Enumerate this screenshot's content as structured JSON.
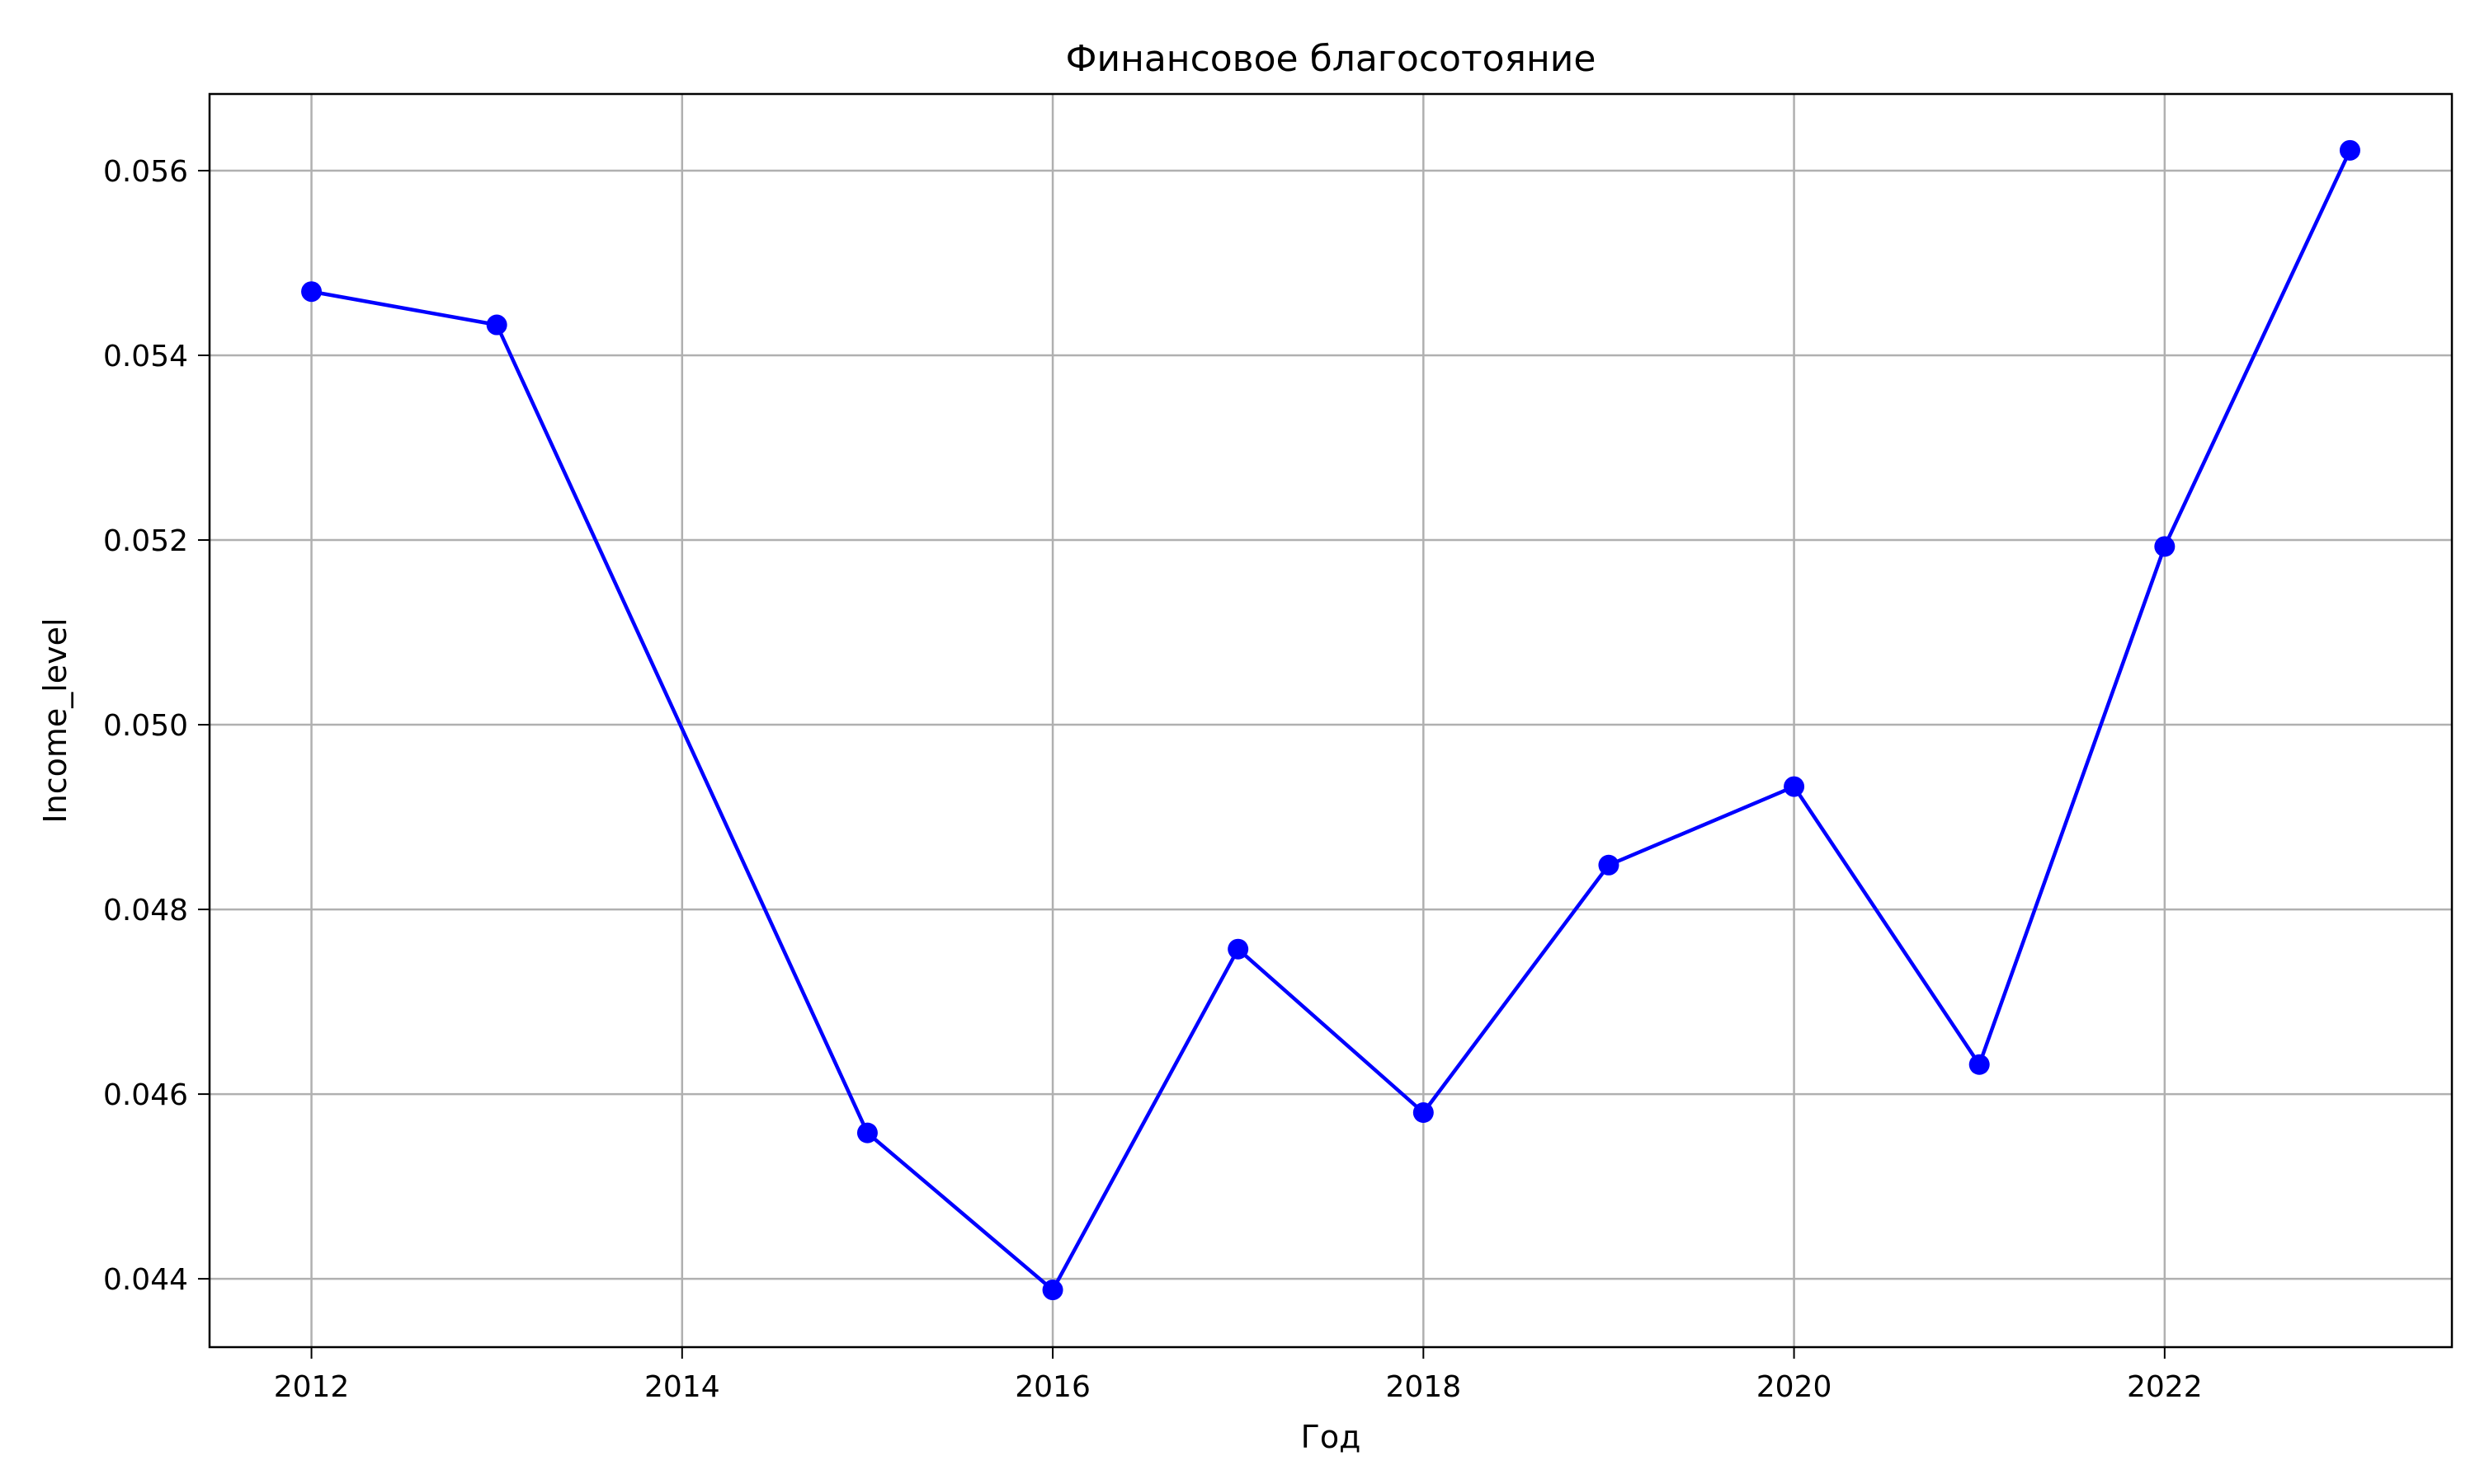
{
  "chart_data": {
    "type": "line",
    "title": "Финансовое благосотояние",
    "xlabel": "Год",
    "ylabel": "Income_level",
    "x": [
      2012,
      2013,
      2015,
      2016,
      2017,
      2018,
      2019,
      2020,
      2021,
      2022,
      2023
    ],
    "series": [
      {
        "values": [
          0.05469,
          0.05433,
          0.04558,
          0.04388,
          0.04757,
          0.0458,
          0.04848,
          0.04933,
          0.04632,
          0.05193,
          0.05622
        ],
        "color": "#0000ff"
      }
    ],
    "xlim": [
      2011.45,
      2023.55
    ],
    "ylim": [
      0.04326,
      0.05683
    ],
    "xticks": [
      2012,
      2014,
      2016,
      2018,
      2020,
      2022
    ],
    "yticks": [
      0.044,
      0.046,
      0.048,
      0.05,
      0.052,
      0.054,
      0.056
    ],
    "ytick_labels": [
      "0.044",
      "0.046",
      "0.048",
      "0.050",
      "0.052",
      "0.054",
      "0.056"
    ],
    "grid": true,
    "marker": "circle"
  }
}
